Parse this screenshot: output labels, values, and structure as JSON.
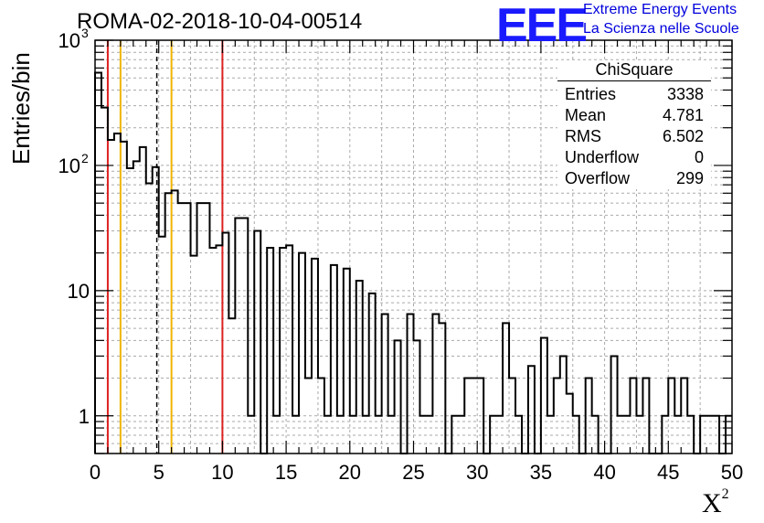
{
  "header": {
    "title": "ROMA-02-2018-10-04-00514",
    "logo_text": "EEE",
    "logo_line1": "Extreme Energy Events",
    "logo_line2": "La Scienza nelle Scuole"
  },
  "stats_box": {
    "title": "ChiSquare",
    "rows": [
      {
        "label": "Entries",
        "value": "3338"
      },
      {
        "label": "Mean",
        "value": "4.781"
      },
      {
        "label": "RMS",
        "value": "6.502"
      },
      {
        "label": "Underflow",
        "value": "0"
      },
      {
        "label": "Overflow",
        "value": "299"
      }
    ]
  },
  "colors": {
    "red_line": "#dd2222",
    "yellow_line": "#f0b400",
    "grid": "#aaaaaa",
    "histogram": "#000000"
  },
  "chart_data": {
    "type": "histogram",
    "title": "ROMA-02-2018-10-04-00514",
    "xlabel": "X",
    "xlabel_superscript": "2",
    "ylabel": "Entries/bin",
    "xlim": [
      0,
      50
    ],
    "ylim": [
      0.5,
      1000
    ],
    "yscale": "log",
    "bin_width": 0.5,
    "x_ticks": [
      0,
      5,
      10,
      15,
      20,
      25,
      30,
      35,
      40,
      45,
      50
    ],
    "y_tick_labels": [
      {
        "value": 1,
        "label": "1"
      },
      {
        "value": 10,
        "label": "10"
      },
      {
        "value": 100,
        "label": "10",
        "exp": "2"
      },
      {
        "value": 1000,
        "label": "10",
        "exp": "3"
      }
    ],
    "grid": true,
    "values": [
      550,
      290,
      160,
      180,
      155,
      95,
      108,
      140,
      72,
      97,
      27,
      60,
      63,
      50,
      50,
      19,
      50,
      50,
      22,
      23,
      29,
      6,
      38,
      38,
      1,
      30,
      0.5,
      22,
      1,
      22,
      23,
      1,
      20,
      2,
      18,
      2,
      1,
      16,
      1,
      15,
      1,
      12,
      1,
      9.5,
      1,
      6.5,
      1,
      4,
      0.5,
      6.5,
      4,
      1,
      1,
      6.5,
      5.5,
      0.5,
      1,
      1,
      2,
      2,
      2,
      0.5,
      1,
      1,
      5.5,
      2,
      1,
      0.5,
      2.5,
      0.5,
      4.2,
      1,
      2,
      3,
      1.5,
      1,
      0.5,
      2,
      1,
      0.5,
      0.5,
      3,
      1,
      1,
      2,
      1,
      2,
      0.5,
      0.5,
      1,
      2,
      1,
      2,
      1,
      0.5,
      1,
      1,
      1,
      0.5,
      1
    ],
    "vertical_lines": [
      {
        "x": 1,
        "style": "red"
      },
      {
        "x": 2,
        "style": "yellow"
      },
      {
        "x": 4.85,
        "style": "dashed"
      },
      {
        "x": 6,
        "style": "yellow"
      },
      {
        "x": 10,
        "style": "red"
      }
    ]
  }
}
